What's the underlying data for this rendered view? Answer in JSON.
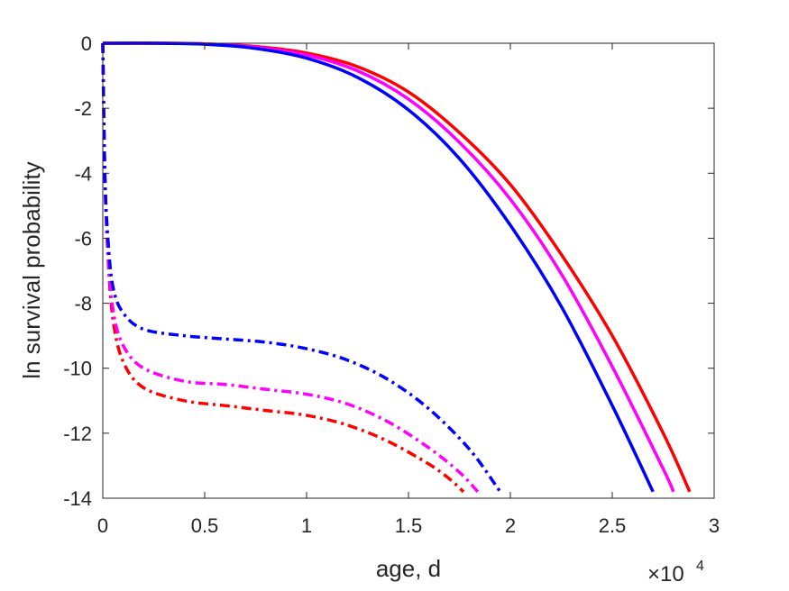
{
  "chart_data": {
    "type": "line",
    "xlabel": "age, d",
    "ylabel": "ln survival probability",
    "x_multiplier": "×10",
    "x_multiplier_exp": "4",
    "xlim": [
      0,
      30000
    ],
    "ylim": [
      -14,
      0
    ],
    "xticks": [
      0,
      5000,
      10000,
      15000,
      20000,
      25000,
      30000
    ],
    "xtick_labels": [
      "0",
      "0.5",
      "1",
      "1.5",
      "2",
      "2.5",
      "3"
    ],
    "yticks": [
      0,
      -2,
      -4,
      -6,
      -8,
      -10,
      -12,
      -14
    ],
    "ytick_labels": [
      "0",
      "-2",
      "-4",
      "-6",
      "-8",
      "-10",
      "-12",
      "-14"
    ],
    "grid": false,
    "series": [
      {
        "color": "#ff0000",
        "style": "solid",
        "x": [
          0,
          2500,
          5000,
          7500,
          10000,
          12500,
          15000,
          17500,
          20000,
          22500,
          25000,
          27500,
          28800
        ],
        "y": [
          0,
          0,
          -0.02,
          -0.1,
          -0.3,
          -0.72,
          -1.5,
          -2.75,
          -4.35,
          -6.5,
          -9.0,
          -12.0,
          -13.8
        ]
      },
      {
        "color": "#ff00ff",
        "style": "solid",
        "x": [
          0,
          2500,
          5000,
          7500,
          10000,
          12500,
          15000,
          17500,
          20000,
          22500,
          25000,
          27500,
          28000
        ],
        "y": [
          0,
          0,
          -0.02,
          -0.12,
          -0.36,
          -0.85,
          -1.72,
          -3.05,
          -4.8,
          -7.1,
          -9.95,
          -13.1,
          -13.8
        ]
      },
      {
        "color": "#0000ff",
        "style": "solid",
        "x": [
          0,
          2500,
          5000,
          7500,
          10000,
          12500,
          15000,
          17500,
          20000,
          22500,
          25000,
          27000
        ],
        "y": [
          0,
          0,
          -0.03,
          -0.16,
          -0.46,
          -1.05,
          -2.05,
          -3.55,
          -5.6,
          -8.1,
          -11.15,
          -13.8
        ]
      },
      {
        "color": "#ff0000",
        "style": "dashdot",
        "x": [
          0,
          100,
          250,
          500,
          1000,
          2000,
          4000,
          6000,
          8000,
          10000,
          12000,
          14000,
          16000,
          17000,
          17700
        ],
        "y": [
          0,
          -4.0,
          -6.5,
          -8.5,
          -9.8,
          -10.6,
          -11.0,
          -11.15,
          -11.3,
          -11.45,
          -11.75,
          -12.25,
          -12.95,
          -13.4,
          -13.8
        ]
      },
      {
        "color": "#ff00ff",
        "style": "dashdot",
        "x": [
          0,
          100,
          250,
          500,
          1000,
          2000,
          4000,
          6000,
          8000,
          10000,
          12000,
          14000,
          16000,
          17500,
          18400
        ],
        "y": [
          0,
          -4.0,
          -6.3,
          -8.2,
          -9.3,
          -10.0,
          -10.4,
          -10.5,
          -10.65,
          -10.8,
          -11.1,
          -11.65,
          -12.45,
          -13.2,
          -13.8
        ]
      },
      {
        "color": "#0000ff",
        "style": "dashdot",
        "x": [
          0,
          100,
          250,
          500,
          1000,
          2000,
          4000,
          6000,
          8000,
          10000,
          12000,
          14000,
          16000,
          18000,
          19500
        ],
        "y": [
          0,
          -4.0,
          -6.0,
          -7.5,
          -8.3,
          -8.8,
          -9.0,
          -9.1,
          -9.2,
          -9.4,
          -9.75,
          -10.35,
          -11.25,
          -12.5,
          -13.8
        ]
      }
    ]
  }
}
